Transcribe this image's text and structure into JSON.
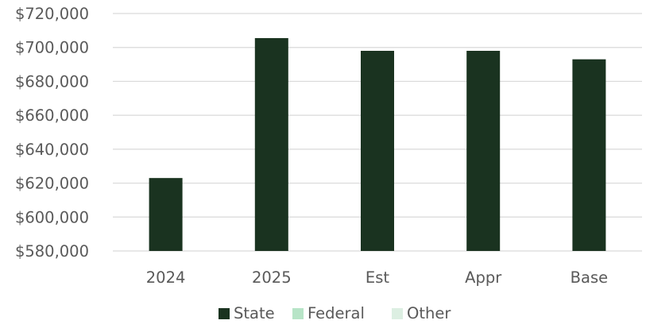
{
  "chart_data": {
    "type": "bar",
    "title": "",
    "xlabel": "",
    "ylabel": "",
    "categories": [
      "2024",
      "2025",
      "Est",
      "Appr",
      "Base"
    ],
    "series": [
      {
        "name": "State",
        "color": "#1a3320",
        "values": [
          623000,
          705500,
          698000,
          698000,
          693000
        ]
      },
      {
        "name": "Federal",
        "color": "#b7e4c7",
        "values": [
          0,
          0,
          0,
          0,
          0
        ]
      },
      {
        "name": "Other",
        "color": "#dcefe2",
        "values": [
          0,
          0,
          0,
          0,
          0
        ]
      }
    ],
    "ylim": [
      580000,
      720000
    ],
    "yticks": [
      580000,
      600000,
      620000,
      640000,
      660000,
      680000,
      700000,
      720000
    ],
    "ytick_labels": [
      "$580,000",
      "$600,000",
      "$620,000",
      "$640,000",
      "$660,000",
      "$680,000",
      "$700,000",
      "$720,000"
    ],
    "grid": true,
    "gridline_color": "#d9d9d9",
    "legend_position": "bottom"
  }
}
